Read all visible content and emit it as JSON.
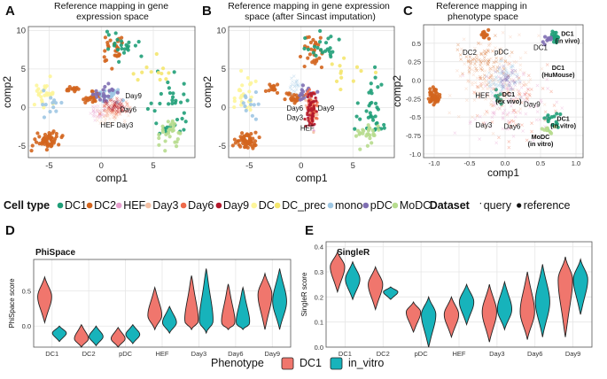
{
  "chart_data": [
    {
      "panel": "A",
      "type": "scatter",
      "title": "Reference mapping in gene expression space",
      "xlabel": "comp1",
      "ylabel": "comp2",
      "xticks": [
        "-5",
        "0",
        "5"
      ],
      "yticks": [
        "-5",
        "0",
        "5",
        "10"
      ],
      "xlim": [
        -7,
        9
      ],
      "ylim": [
        -6.5,
        10.5
      ],
      "cluster_labels": [
        "Day9",
        "Day6",
        "HEF",
        "Day3"
      ]
    },
    {
      "panel": "B",
      "type": "scatter",
      "title": "Reference mapping in gene expression space (after Sincast imputation)",
      "xlabel": "comp1",
      "ylabel": "comp2",
      "xticks": [
        "-5",
        "0",
        "5"
      ],
      "yticks": [
        "-5",
        "0",
        "5",
        "10"
      ],
      "xlim": [
        -7,
        9
      ],
      "ylim": [
        -6.5,
        10.5
      ],
      "cluster_labels": [
        "Day6",
        "Day3",
        "Day9",
        "HEF"
      ]
    },
    {
      "panel": "C",
      "type": "scatter",
      "title": "Reference mapping in phenotype space",
      "xlabel": "comp1",
      "ylabel": "comp2",
      "xticks": [
        "-1.0",
        "-0.5",
        "0.0",
        "0.5",
        "1.0"
      ],
      "yticks": [
        "-1.0",
        "-0.75",
        "-0.5",
        "-0.25",
        "0.0",
        "0.25",
        "0.5"
      ],
      "xlim": [
        -1.15,
        1.1
      ],
      "ylim": [
        -1.05,
        0.75
      ],
      "cluster_labels": [
        "DC1 (in vivo)",
        "pDC",
        "DC1",
        "DC2",
        "DC1 (HuMouse)",
        "DC1 (ex vivo)",
        "HEF",
        "Day9",
        "Day3",
        "Day6",
        "DC1 (in vitro)",
        "MoDC (in vitro)"
      ]
    },
    {
      "panel": "D",
      "type": "violin",
      "title": "PhiSpace",
      "xlabel": "",
      "ylabel": "PhiSpace score",
      "categories": [
        "DC1",
        "DC2",
        "pDC",
        "HEF",
        "Day3",
        "Day6",
        "Day9"
      ],
      "ylim": [
        -0.3,
        0.95
      ],
      "yticks": [
        "0.0",
        "0.5"
      ],
      "series": [
        {
          "name": "DC1",
          "medians": [
            0.42,
            -0.18,
            -0.18,
            0.15,
            0.05,
            0.02,
            0.45
          ],
          "mins": [
            0.05,
            -0.3,
            -0.3,
            -0.05,
            -0.05,
            -0.05,
            -0.05
          ],
          "maxs": [
            0.7,
            0.02,
            -0.02,
            0.55,
            0.72,
            0.6,
            0.75
          ]
        },
        {
          "name": "in_vitro",
          "medians": [
            -0.1,
            -0.15,
            -0.12,
            0.05,
            0.05,
            0.02,
            0.35
          ],
          "mins": [
            -0.22,
            -0.28,
            -0.25,
            -0.1,
            -0.1,
            -0.05,
            -0.05
          ],
          "maxs": [
            0.0,
            0.0,
            0.02,
            0.28,
            0.82,
            0.55,
            0.82
          ]
        }
      ]
    },
    {
      "panel": "E",
      "type": "violin",
      "title": "SingleR",
      "xlabel": "",
      "ylabel": "SingleR score",
      "categories": [
        "DC1",
        "DC2",
        "pDC",
        "HEF",
        "Day3",
        "Day6",
        "Day9"
      ],
      "ylim": [
        0.0,
        0.42
      ],
      "yticks": [
        "0.0",
        "0.1",
        "0.2",
        "0.3",
        "0.4"
      ],
      "series": [
        {
          "name": "DC1",
          "medians": [
            0.32,
            0.25,
            0.14,
            0.13,
            0.14,
            0.14,
            0.27
          ],
          "mins": [
            0.22,
            0.15,
            0.06,
            0.04,
            0.02,
            0.03,
            0.04
          ],
          "maxs": [
            0.38,
            0.32,
            0.18,
            0.2,
            0.25,
            0.3,
            0.36
          ]
        },
        {
          "name": "in_vitro",
          "medians": [
            0.27,
            0.22,
            0.13,
            0.18,
            0.15,
            0.18,
            0.27
          ],
          "mins": [
            0.19,
            0.19,
            0.0,
            0.09,
            0.07,
            0.04,
            0.13
          ],
          "maxs": [
            0.34,
            0.24,
            0.2,
            0.25,
            0.26,
            0.33,
            0.35
          ]
        }
      ]
    }
  ],
  "legend": {
    "cell_type_title": "Cell type",
    "cell_types": [
      {
        "label": "DC1",
        "color": "#1f9e78"
      },
      {
        "label": "DC2",
        "color": "#d3651e"
      },
      {
        "label": "HEF",
        "color": "#e7a0cf"
      },
      {
        "label": "Day3",
        "color": "#f4c1a5"
      },
      {
        "label": "Day6",
        "color": "#ee6a4a"
      },
      {
        "label": "Day9",
        "color": "#b2182b"
      },
      {
        "label": "DC",
        "color": "#fdf59a"
      },
      {
        "label": "DC_prec",
        "color": "#f4e66e"
      },
      {
        "label": "mono",
        "color": "#9ec7e3"
      },
      {
        "label": "pDC",
        "color": "#7f6fb2"
      },
      {
        "label": "MoDC",
        "color": "#b7dc8e"
      }
    ],
    "dataset_title": "Dataset",
    "datasets": [
      "query",
      "reference"
    ],
    "phenotype_title": "Phenotype",
    "phenotypes": [
      {
        "label": "DC1",
        "color": "#f0766d"
      },
      {
        "label": "in_vitro",
        "color": "#17b3bb"
      }
    ]
  }
}
